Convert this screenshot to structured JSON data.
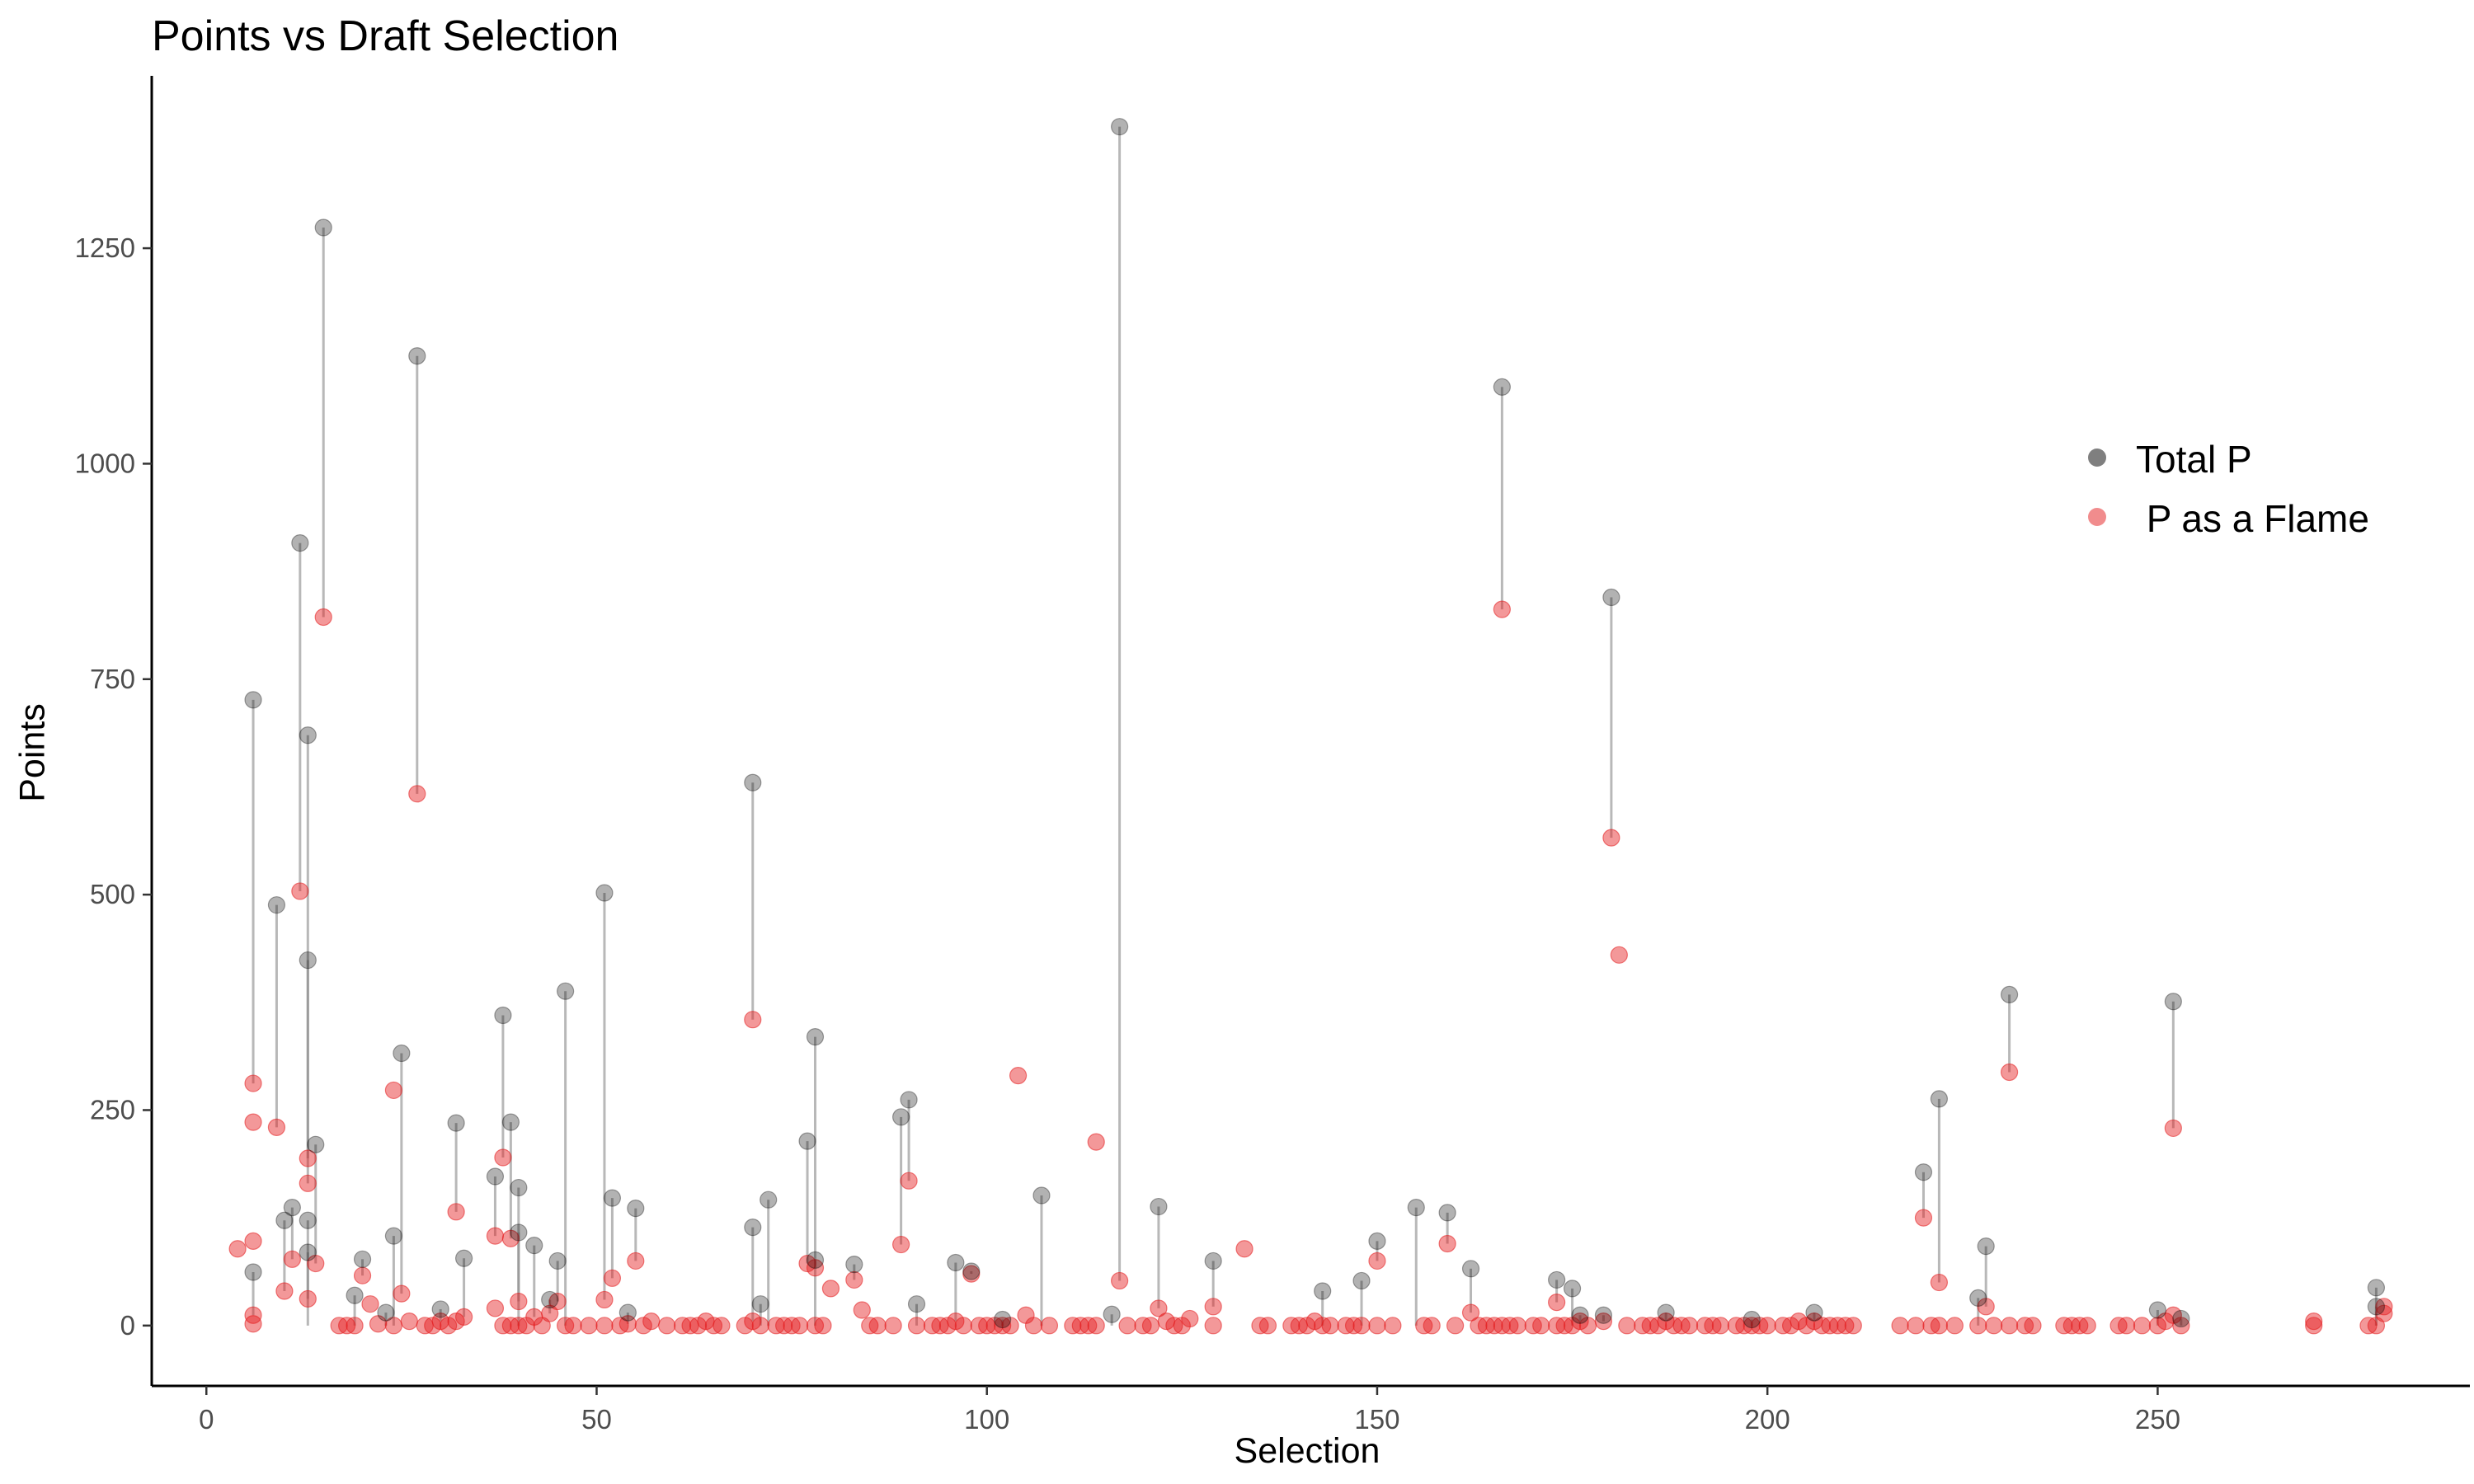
{
  "chart_data": {
    "type": "scatter",
    "title": "Points vs Draft Selection",
    "xlabel": "Selection",
    "ylabel": "Points",
    "xlim": [
      -7,
      290
    ],
    "ylim": [
      -70,
      1450
    ],
    "x_ticks": [
      0,
      50,
      100,
      150,
      200,
      250
    ],
    "y_ticks": [
      0,
      250,
      500,
      750,
      1000,
      1250
    ],
    "grid": false,
    "legend_position": "right",
    "colors": {
      "total": "#000000",
      "flame": "#E41A1C",
      "segment": "#888888"
    },
    "series": [
      {
        "name": "Total P",
        "points": [
          [
            6,
            726
          ],
          [
            6,
            62
          ],
          [
            9,
            488
          ],
          [
            10,
            122
          ],
          [
            11,
            137
          ],
          [
            12,
            908
          ],
          [
            13,
            685
          ],
          [
            13,
            424
          ],
          [
            13,
            122
          ],
          [
            13,
            85
          ],
          [
            14,
            210
          ],
          [
            15,
            1274
          ],
          [
            19,
            35
          ],
          [
            20,
            77
          ],
          [
            23,
            15
          ],
          [
            24,
            104
          ],
          [
            25,
            316
          ],
          [
            27,
            1125
          ],
          [
            30,
            19
          ],
          [
            32,
            235
          ],
          [
            33,
            78
          ],
          [
            37,
            173
          ],
          [
            38,
            360
          ],
          [
            39,
            236
          ],
          [
            40,
            160
          ],
          [
            40,
            108
          ],
          [
            42,
            93
          ],
          [
            44,
            30
          ],
          [
            45,
            75
          ],
          [
            46,
            388
          ],
          [
            51,
            502
          ],
          [
            52,
            148
          ],
          [
            54,
            15
          ],
          [
            55,
            136
          ],
          [
            70,
            114
          ],
          [
            70,
            630
          ],
          [
            71,
            25
          ],
          [
            72,
            146
          ],
          [
            77,
            214
          ],
          [
            78,
            335
          ],
          [
            78,
            76
          ],
          [
            83,
            71
          ],
          [
            89,
            242
          ],
          [
            90,
            262
          ],
          [
            91,
            25
          ],
          [
            96,
            73
          ],
          [
            98,
            63
          ],
          [
            102,
            7
          ],
          [
            107,
            151
          ],
          [
            116,
            13
          ],
          [
            117,
            1391
          ],
          [
            122,
            138
          ],
          [
            129,
            75
          ],
          [
            143,
            40
          ],
          [
            148,
            52
          ],
          [
            150,
            98
          ],
          [
            155,
            137
          ],
          [
            159,
            131
          ],
          [
            162,
            66
          ],
          [
            166,
            1089
          ],
          [
            173,
            53
          ],
          [
            175,
            43
          ],
          [
            176,
            12
          ],
          [
            179,
            12
          ],
          [
            180,
            845
          ],
          [
            187,
            15
          ],
          [
            198,
            7
          ],
          [
            206,
            15
          ],
          [
            220,
            178
          ],
          [
            222,
            263
          ],
          [
            227,
            32
          ],
          [
            228,
            92
          ],
          [
            231,
            384
          ],
          [
            250,
            18
          ],
          [
            252,
            376
          ],
          [
            253,
            8
          ],
          [
            278,
            44
          ],
          [
            278,
            22
          ]
        ]
      },
      {
        "name": " P as a Flame",
        "points": [
          [
            4,
            89
          ],
          [
            6,
            281
          ],
          [
            6,
            98
          ],
          [
            6,
            236
          ],
          [
            6,
            12
          ],
          [
            6,
            2
          ],
          [
            9,
            230
          ],
          [
            10,
            40
          ],
          [
            11,
            77
          ],
          [
            12,
            504
          ],
          [
            13,
            194
          ],
          [
            13,
            165
          ],
          [
            13,
            31
          ],
          [
            14,
            72
          ],
          [
            15,
            822
          ],
          [
            17,
            0
          ],
          [
            18,
            0
          ],
          [
            19,
            0
          ],
          [
            20,
            58
          ],
          [
            21,
            25
          ],
          [
            22,
            2
          ],
          [
            24,
            273
          ],
          [
            24,
            0
          ],
          [
            25,
            37
          ],
          [
            26,
            5
          ],
          [
            27,
            617
          ],
          [
            28,
            0
          ],
          [
            29,
            0
          ],
          [
            30,
            5
          ],
          [
            31,
            0
          ],
          [
            32,
            132
          ],
          [
            32,
            5
          ],
          [
            33,
            10
          ],
          [
            37,
            20
          ],
          [
            37,
            104
          ],
          [
            38,
            195
          ],
          [
            38,
            0
          ],
          [
            39,
            101
          ],
          [
            39,
            0
          ],
          [
            40,
            28
          ],
          [
            40,
            0
          ],
          [
            41,
            0
          ],
          [
            42,
            10
          ],
          [
            43,
            0
          ],
          [
            44,
            14
          ],
          [
            45,
            28
          ],
          [
            46,
            0
          ],
          [
            47,
            0
          ],
          [
            49,
            0
          ],
          [
            51,
            30
          ],
          [
            51,
            0
          ],
          [
            52,
            55
          ],
          [
            53,
            0
          ],
          [
            54,
            2
          ],
          [
            55,
            75
          ],
          [
            56,
            0
          ],
          [
            57,
            5
          ],
          [
            59,
            0
          ],
          [
            61,
            0
          ],
          [
            62,
            0
          ],
          [
            63,
            0
          ],
          [
            64,
            5
          ],
          [
            65,
            0
          ],
          [
            66,
            0
          ],
          [
            69,
            0
          ],
          [
            70,
            355
          ],
          [
            70,
            5
          ],
          [
            71,
            0
          ],
          [
            73,
            0
          ],
          [
            74,
            0
          ],
          [
            75,
            0
          ],
          [
            76,
            0
          ],
          [
            77,
            72
          ],
          [
            78,
            67
          ],
          [
            78,
            0
          ],
          [
            79,
            0
          ],
          [
            80,
            43
          ],
          [
            83,
            53
          ],
          [
            84,
            18
          ],
          [
            85,
            0
          ],
          [
            86,
            0
          ],
          [
            88,
            0
          ],
          [
            89,
            94
          ],
          [
            90,
            168
          ],
          [
            91,
            0
          ],
          [
            93,
            0
          ],
          [
            94,
            0
          ],
          [
            95,
            0
          ],
          [
            96,
            5
          ],
          [
            97,
            0
          ],
          [
            98,
            60
          ],
          [
            99,
            0
          ],
          [
            100,
            0
          ],
          [
            101,
            0
          ],
          [
            102,
            0
          ],
          [
            103,
            0
          ],
          [
            104,
            290
          ],
          [
            105,
            12
          ],
          [
            106,
            0
          ],
          [
            108,
            0
          ],
          [
            111,
            0
          ],
          [
            112,
            0
          ],
          [
            113,
            0
          ],
          [
            114,
            213
          ],
          [
            114,
            0
          ],
          [
            117,
            52
          ],
          [
            118,
            0
          ],
          [
            120,
            0
          ],
          [
            121,
            0
          ],
          [
            122,
            20
          ],
          [
            123,
            5
          ],
          [
            124,
            0
          ],
          [
            125,
            0
          ],
          [
            126,
            8
          ],
          [
            129,
            22
          ],
          [
            129,
            0
          ],
          [
            133,
            89
          ],
          [
            135,
            0
          ],
          [
            136,
            0
          ],
          [
            139,
            0
          ],
          [
            140,
            0
          ],
          [
            141,
            0
          ],
          [
            142,
            5
          ],
          [
            143,
            0
          ],
          [
            144,
            0
          ],
          [
            146,
            0
          ],
          [
            147,
            0
          ],
          [
            148,
            0
          ],
          [
            150,
            75
          ],
          [
            150,
            0
          ],
          [
            152,
            0
          ],
          [
            156,
            0
          ],
          [
            157,
            0
          ],
          [
            159,
            95
          ],
          [
            160,
            0
          ],
          [
            162,
            15
          ],
          [
            163,
            0
          ],
          [
            164,
            0
          ],
          [
            165,
            0
          ],
          [
            166,
            831
          ],
          [
            166,
            0
          ],
          [
            167,
            0
          ],
          [
            168,
            0
          ],
          [
            170,
            0
          ],
          [
            171,
            0
          ],
          [
            173,
            27
          ],
          [
            173,
            0
          ],
          [
            174,
            0
          ],
          [
            175,
            0
          ],
          [
            176,
            5
          ],
          [
            177,
            0
          ],
          [
            179,
            5
          ],
          [
            180,
            566
          ],
          [
            181,
            430
          ],
          [
            182,
            0
          ],
          [
            184,
            0
          ],
          [
            185,
            0
          ],
          [
            186,
            0
          ],
          [
            187,
            5
          ],
          [
            188,
            0
          ],
          [
            189,
            0
          ],
          [
            190,
            0
          ],
          [
            192,
            0
          ],
          [
            193,
            0
          ],
          [
            194,
            0
          ],
          [
            196,
            0
          ],
          [
            197,
            0
          ],
          [
            198,
            0
          ],
          [
            199,
            0
          ],
          [
            200,
            0
          ],
          [
            202,
            0
          ],
          [
            203,
            0
          ],
          [
            204,
            5
          ],
          [
            205,
            0
          ],
          [
            206,
            5
          ],
          [
            207,
            0
          ],
          [
            208,
            0
          ],
          [
            209,
            0
          ],
          [
            210,
            0
          ],
          [
            211,
            0
          ],
          [
            217,
            0
          ],
          [
            219,
            0
          ],
          [
            220,
            125
          ],
          [
            221,
            0
          ],
          [
            222,
            50
          ],
          [
            222,
            0
          ],
          [
            224,
            0
          ],
          [
            227,
            0
          ],
          [
            228,
            22
          ],
          [
            229,
            0
          ],
          [
            231,
            294
          ],
          [
            231,
            0
          ],
          [
            233,
            0
          ],
          [
            234,
            0
          ],
          [
            238,
            0
          ],
          [
            239,
            0
          ],
          [
            240,
            0
          ],
          [
            241,
            0
          ],
          [
            245,
            0
          ],
          [
            246,
            0
          ],
          [
            248,
            0
          ],
          [
            250,
            0
          ],
          [
            251,
            5
          ],
          [
            252,
            229
          ],
          [
            252,
            12
          ],
          [
            253,
            0
          ],
          [
            270,
            0
          ],
          [
            270,
            5
          ],
          [
            277,
            0
          ],
          [
            278,
            0
          ],
          [
            279,
            14
          ],
          [
            279,
            22
          ]
        ]
      }
    ]
  }
}
